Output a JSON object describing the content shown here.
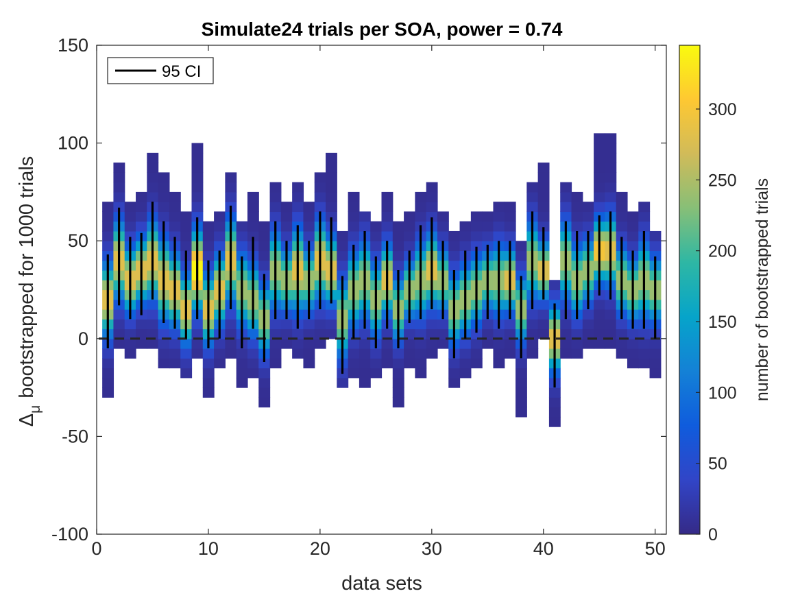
{
  "chart_data": {
    "type": "heatmap",
    "title": "Simulate24 trials per SOA, power = 0.74",
    "xlabel": "data sets",
    "ylabel_symbol": "Δ",
    "ylabel_subscript": "μ",
    "ylabel": "bootstrapped  for 1000 trials",
    "xlim": [
      0,
      51
    ],
    "ylim": [
      -100,
      150
    ],
    "x_ticks": [
      0,
      10,
      20,
      30,
      40,
      50
    ],
    "y_ticks": [
      -100,
      -50,
      0,
      50,
      100,
      150
    ],
    "reference_line": {
      "y": 0,
      "style": "dashed"
    },
    "legend": {
      "entries": [
        "95 CI"
      ],
      "placement": "top-left"
    },
    "colorbar": {
      "label": "number of bootstrapped trials",
      "range": [
        0,
        345
      ],
      "ticks": [
        0,
        50,
        100,
        150,
        200,
        250,
        300
      ],
      "colormap": "parula",
      "stops": [
        "#352a87",
        "#3145c7",
        "#0f5cdd",
        "#1481d6",
        "#06a4ca",
        "#2eb7a4",
        "#87bf77",
        "#d1bb59",
        "#fec832",
        "#f9fb0e"
      ]
    },
    "bin_width": 5,
    "series": [
      {
        "x": 1,
        "lo": -30,
        "hi": 70,
        "mode": 20,
        "peak": 280,
        "ci": [
          -5,
          43
        ]
      },
      {
        "x": 2,
        "lo": -5,
        "hi": 87,
        "mode": 40,
        "peak": 280,
        "ci": [
          17,
          67
        ]
      },
      {
        "x": 3,
        "lo": -10,
        "hi": 70,
        "mode": 30,
        "peak": 280,
        "ci": [
          10,
          52
        ]
      },
      {
        "x": 4,
        "lo": -5,
        "hi": 75,
        "mode": 35,
        "peak": 280,
        "ci": [
          12,
          54
        ]
      },
      {
        "x": 5,
        "lo": -5,
        "hi": 95,
        "mode": 40,
        "peak": 280,
        "ci": [
          20,
          70
        ]
      },
      {
        "x": 6,
        "lo": -15,
        "hi": 82,
        "mode": 30,
        "peak": 280,
        "ci": [
          8,
          60
        ]
      },
      {
        "x": 7,
        "lo": -15,
        "hi": 72,
        "mode": 25,
        "peak": 280,
        "ci": [
          5,
          52
        ]
      },
      {
        "x": 8,
        "lo": -20,
        "hi": 62,
        "mode": 15,
        "peak": 280,
        "ci": [
          0,
          45
        ]
      },
      {
        "x": 9,
        "lo": -10,
        "hi": 98,
        "mode": 35,
        "peak": 340,
        "ci": [
          10,
          62
        ]
      },
      {
        "x": 10,
        "lo": -30,
        "hi": 60,
        "mode": 15,
        "peak": 280,
        "ci": [
          -5,
          40
        ]
      },
      {
        "x": 11,
        "lo": -15,
        "hi": 65,
        "mode": 25,
        "peak": 280,
        "ci": [
          0,
          45
        ]
      },
      {
        "x": 12,
        "lo": -10,
        "hi": 85,
        "mode": 40,
        "peak": 280,
        "ci": [
          15,
          68
        ]
      },
      {
        "x": 13,
        "lo": -25,
        "hi": 60,
        "mode": 25,
        "peak": 240,
        "ci": [
          -5,
          42
        ]
      },
      {
        "x": 14,
        "lo": -20,
        "hi": 72,
        "mode": 20,
        "peak": 240,
        "ci": [
          5,
          52
        ]
      },
      {
        "x": 15,
        "lo": -35,
        "hi": 60,
        "mode": 10,
        "peak": 240,
        "ci": [
          -12,
          33
        ]
      },
      {
        "x": 16,
        "lo": -15,
        "hi": 78,
        "mode": 35,
        "peak": 240,
        "ci": [
          10,
          60
        ]
      },
      {
        "x": 17,
        "lo": -5,
        "hi": 70,
        "mode": 30,
        "peak": 240,
        "ci": [
          10,
          50
        ]
      },
      {
        "x": 18,
        "lo": -10,
        "hi": 78,
        "mode": 35,
        "peak": 280,
        "ci": [
          5,
          58
        ]
      },
      {
        "x": 19,
        "lo": -15,
        "hi": 70,
        "mode": 30,
        "peak": 240,
        "ci": [
          10,
          50
        ]
      },
      {
        "x": 20,
        "lo": -5,
        "hi": 85,
        "mode": 40,
        "peak": 280,
        "ci": [
          15,
          65
        ]
      },
      {
        "x": 21,
        "lo": 0,
        "hi": 95,
        "mode": 35,
        "peak": 280,
        "ci": [
          18,
          62
        ]
      },
      {
        "x": 22,
        "lo": -25,
        "hi": 55,
        "mode": 10,
        "peak": 240,
        "ci": [
          -18,
          32
        ]
      },
      {
        "x": 23,
        "lo": -20,
        "hi": 72,
        "mode": 25,
        "peak": 240,
        "ci": [
          0,
          48
        ]
      },
      {
        "x": 24,
        "lo": -25,
        "hi": 65,
        "mode": 30,
        "peak": 240,
        "ci": [
          5,
          55
        ]
      },
      {
        "x": 25,
        "lo": -20,
        "hi": 60,
        "mode": 20,
        "peak": 240,
        "ci": [
          -5,
          42
        ]
      },
      {
        "x": 26,
        "lo": -15,
        "hi": 72,
        "mode": 30,
        "peak": 280,
        "ci": [
          5,
          50
        ]
      },
      {
        "x": 27,
        "lo": -35,
        "hi": 60,
        "mode": 15,
        "peak": 240,
        "ci": [
          -5,
          35
        ]
      },
      {
        "x": 28,
        "lo": -15,
        "hi": 65,
        "mode": 25,
        "peak": 240,
        "ci": [
          8,
          45
        ]
      },
      {
        "x": 29,
        "lo": -20,
        "hi": 72,
        "mode": 30,
        "peak": 240,
        "ci": [
          10,
          58
        ]
      },
      {
        "x": 30,
        "lo": -10,
        "hi": 80,
        "mode": 35,
        "peak": 280,
        "ci": [
          15,
          62
        ]
      },
      {
        "x": 31,
        "lo": -5,
        "hi": 65,
        "mode": 30,
        "peak": 240,
        "ci": [
          10,
          50
        ]
      },
      {
        "x": 32,
        "lo": -25,
        "hi": 55,
        "mode": 15,
        "peak": 240,
        "ci": [
          -10,
          35
        ]
      },
      {
        "x": 33,
        "lo": -20,
        "hi": 60,
        "mode": 20,
        "peak": 240,
        "ci": [
          0,
          45
        ]
      },
      {
        "x": 34,
        "lo": -15,
        "hi": 65,
        "mode": 25,
        "peak": 240,
        "ci": [
          3,
          47
        ]
      },
      {
        "x": 35,
        "lo": -5,
        "hi": 65,
        "mode": 30,
        "peak": 240,
        "ci": [
          10,
          48
        ]
      },
      {
        "x": 36,
        "lo": -15,
        "hi": 68,
        "mode": 30,
        "peak": 240,
        "ci": [
          5,
          50
        ]
      },
      {
        "x": 37,
        "lo": -10,
        "hi": 68,
        "mode": 30,
        "peak": 280,
        "ci": [
          10,
          50
        ]
      },
      {
        "x": 38,
        "lo": -40,
        "hi": 50,
        "mode": 15,
        "peak": 240,
        "ci": [
          -10,
          32
        ]
      },
      {
        "x": 39,
        "lo": -10,
        "hi": 80,
        "mode": 40,
        "peak": 240,
        "ci": [
          15,
          65
        ]
      },
      {
        "x": 40,
        "lo": 0,
        "hi": 87,
        "mode": 35,
        "peak": 280,
        "ci": [
          20,
          57
        ]
      },
      {
        "x": 41,
        "lo": -45,
        "hi": 30,
        "mode": 0,
        "peak": 280,
        "ci": [
          -25,
          18
        ]
      },
      {
        "x": 42,
        "lo": -10,
        "hi": 80,
        "mode": 40,
        "peak": 240,
        "ci": [
          10,
          60
        ]
      },
      {
        "x": 43,
        "lo": -10,
        "hi": 75,
        "mode": 30,
        "peak": 240,
        "ci": [
          10,
          55
        ]
      },
      {
        "x": 44,
        "lo": -5,
        "hi": 70,
        "mode": 35,
        "peak": 240,
        "ci": [
          15,
          55
        ]
      },
      {
        "x": 45,
        "lo": -5,
        "hi": 105,
        "mode": 45,
        "peak": 300,
        "ci": [
          22,
          63
        ]
      },
      {
        "x": 46,
        "lo": -5,
        "hi": 105,
        "mode": 45,
        "peak": 280,
        "ci": [
          20,
          65
        ]
      },
      {
        "x": 47,
        "lo": -10,
        "hi": 72,
        "mode": 30,
        "peak": 240,
        "ci": [
          10,
          52
        ]
      },
      {
        "x": 48,
        "lo": -15,
        "hi": 65,
        "mode": 25,
        "peak": 240,
        "ci": [
          5,
          45
        ]
      },
      {
        "x": 49,
        "lo": -15,
        "hi": 70,
        "mode": 30,
        "peak": 240,
        "ci": [
          5,
          55
        ]
      },
      {
        "x": 50,
        "lo": -20,
        "hi": 55,
        "mode": 25,
        "peak": 240,
        "ci": [
          0,
          42
        ]
      }
    ]
  }
}
